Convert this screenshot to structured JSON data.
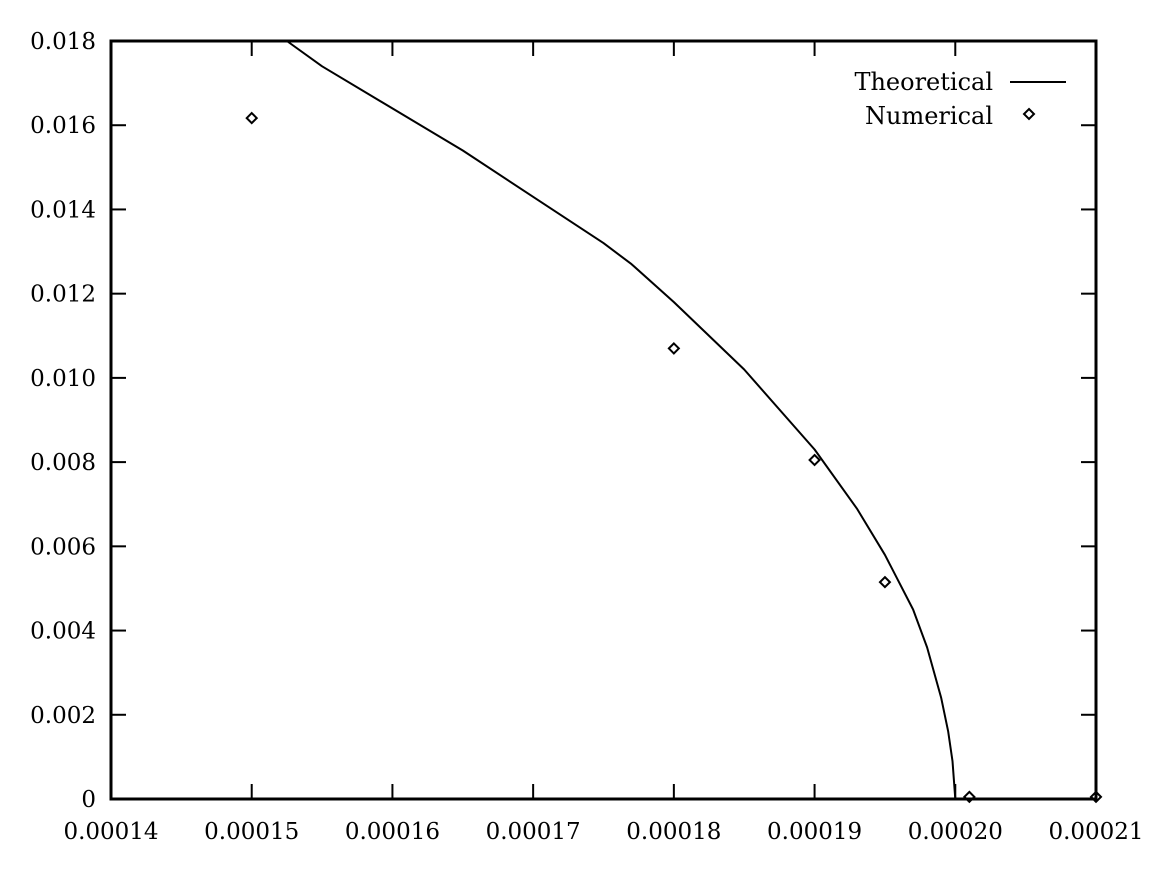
{
  "chart_data": {
    "type": "line",
    "title": "",
    "xlabel": "",
    "ylabel": "",
    "xlim": [
      0.00014,
      0.00021
    ],
    "ylim": [
      0,
      0.018
    ],
    "grid": false,
    "legend_position": "top-right",
    "x_ticks": [
      "0.00014",
      "0.00015",
      "0.00016",
      "0.00017",
      "0.00018",
      "0.00019",
      "0.00020",
      "0.00021"
    ],
    "y_ticks": [
      "0",
      "0.002",
      "0.004",
      "0.006",
      "0.008",
      "0.010",
      "0.012",
      "0.014",
      "0.016",
      "0.018"
    ],
    "series": [
      {
        "name": "Theoretical",
        "style": "line",
        "color": "#000000",
        "x": [
          0.0001525,
          0.000155,
          0.00016,
          0.000165,
          0.00017,
          0.000175,
          0.000177,
          0.00018,
          0.000185,
          0.00019,
          0.000193,
          0.000195,
          0.000197,
          0.000198,
          0.000199,
          0.0001995,
          0.0001998,
          0.0002
        ],
        "y": [
          0.018,
          0.0174,
          0.0164,
          0.0154,
          0.0143,
          0.0132,
          0.0127,
          0.0118,
          0.0102,
          0.0083,
          0.0069,
          0.0058,
          0.0045,
          0.0036,
          0.0024,
          0.0016,
          0.0009,
          0.0
        ]
      },
      {
        "name": "Numerical",
        "style": "points",
        "marker": "diamond",
        "color": "#000000",
        "x": [
          0.00015,
          0.00018,
          0.00019,
          0.000195,
          0.000201,
          0.00021
        ],
        "y": [
          0.01617,
          0.0107,
          0.00805,
          0.00515,
          5e-05,
          5e-05
        ]
      }
    ]
  }
}
